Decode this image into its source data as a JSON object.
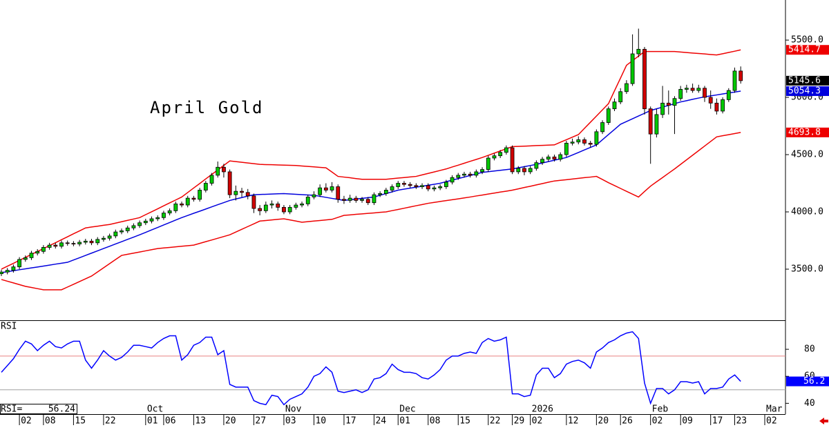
{
  "chart_data": {
    "type": "candlestick",
    "title": "April Gold",
    "categories": [
      null,
      null,
      null,
      "02",
      null,
      null,
      null,
      "08",
      null,
      null,
      null,
      null,
      "15",
      null,
      null,
      null,
      null,
      "22",
      null,
      null,
      null,
      null,
      null,
      null,
      "01",
      null,
      null,
      "06",
      null,
      null,
      null,
      null,
      "13",
      null,
      null,
      null,
      null,
      "20",
      null,
      null,
      null,
      null,
      "27",
      null,
      null,
      null,
      null,
      "03",
      null,
      null,
      null,
      null,
      "10",
      null,
      null,
      null,
      null,
      "17",
      null,
      null,
      null,
      null,
      "24",
      null,
      null,
      null,
      "01",
      null,
      null,
      null,
      null,
      "08",
      null,
      null,
      null,
      null,
      "15",
      null,
      null,
      null,
      null,
      "22",
      null,
      null,
      null,
      "29",
      null,
      null,
      "02",
      null,
      null,
      null,
      null,
      null,
      "12",
      null,
      null,
      null,
      null,
      "20",
      null,
      null,
      null,
      "26",
      null,
      null,
      null,
      null,
      "02",
      null,
      null,
      null,
      null,
      "09",
      null,
      null,
      null,
      null,
      "17",
      null,
      null,
      null,
      "23",
      null,
      null,
      null,
      null,
      "02"
    ],
    "months": [
      null,
      null,
      null,
      null,
      null,
      null,
      null,
      null,
      null,
      null,
      null,
      null,
      null,
      null,
      null,
      null,
      null,
      null,
      null,
      null,
      null,
      null,
      null,
      null,
      "Oct",
      null,
      null,
      null,
      null,
      null,
      null,
      null,
      null,
      null,
      null,
      null,
      null,
      null,
      null,
      null,
      null,
      null,
      null,
      null,
      null,
      null,
      null,
      "Nov",
      null,
      null,
      null,
      null,
      null,
      null,
      null,
      null,
      null,
      null,
      null,
      null,
      null,
      null,
      null,
      null,
      null,
      null,
      "Dec",
      null,
      null,
      null,
      null,
      null,
      null,
      null,
      null,
      null,
      null,
      null,
      null,
      null,
      null,
      null,
      null,
      null,
      null,
      null,
      null,
      null,
      "2026",
      null,
      null,
      null,
      null,
      null,
      null,
      null,
      null,
      null,
      null,
      null,
      null,
      null,
      null,
      null,
      null,
      null,
      null,
      null,
      "Feb",
      null,
      null,
      null,
      null,
      null,
      null,
      null,
      null,
      null,
      null,
      null,
      null,
      null,
      null,
      null,
      null,
      null,
      null,
      "Mar"
    ],
    "open": [
      3460,
      3475,
      3490,
      3520,
      3585,
      3600,
      3640,
      3655,
      3690,
      3710,
      3700,
      3730,
      3725,
      3720,
      3735,
      3745,
      3730,
      3760,
      3770,
      3790,
      3825,
      3835,
      3860,
      3880,
      3905,
      3920,
      3940,
      3950,
      3990,
      4010,
      4070,
      4060,
      4120,
      4110,
      4190,
      4250,
      4320,
      4390,
      4350,
      4150,
      4180,
      4170,
      4140,
      4030,
      4010,
      4060,
      4070,
      4040,
      4000,
      4040,
      4060,
      4070,
      4130,
      4150,
      4210,
      4190,
      4220,
      4110,
      4100,
      4120,
      4100,
      4110,
      4080,
      4150,
      4160,
      4190,
      4220,
      4250,
      4240,
      4230,
      4220,
      4230,
      4200,
      4210,
      4220,
      4260,
      4300,
      4320,
      4330,
      4320,
      4350,
      4370,
      4470,
      4490,
      4520,
      4560,
      4350,
      4380,
      4350,
      4380,
      4430,
      4460,
      4480,
      4460,
      4500,
      4600,
      4610,
      4630,
      4600,
      4590,
      4700,
      4780,
      4900,
      4960,
      5050,
      5120,
      5380,
      5420,
      4900,
      4680,
      4850,
      4950,
      4930,
      4990,
      5070,
      5080,
      5060,
      5080,
      5000,
      4950,
      4880,
      4980,
      5060,
      5230,
      null,
      null,
      null,
      null
    ],
    "high": [
      3495,
      3510,
      3540,
      3605,
      3620,
      3660,
      3675,
      3710,
      3730,
      3730,
      3750,
      3750,
      3745,
      3755,
      3765,
      3765,
      3780,
      3790,
      3810,
      3845,
      3855,
      3880,
      3900,
      3925,
      3940,
      3960,
      3970,
      4010,
      4030,
      4090,
      4090,
      4140,
      4140,
      4210,
      4270,
      4340,
      4440,
      4420,
      4370,
      4230,
      4210,
      4200,
      4160,
      4060,
      4090,
      4100,
      4090,
      4060,
      4060,
      4080,
      4090,
      4150,
      4180,
      4240,
      4250,
      4260,
      4240,
      4140,
      4150,
      4140,
      4130,
      4130,
      4170,
      4180,
      4210,
      4240,
      4270,
      4270,
      4260,
      4250,
      4250,
      4250,
      4230,
      4240,
      4280,
      4320,
      4340,
      4350,
      4350,
      4370,
      4390,
      4490,
      4510,
      4540,
      4580,
      4580,
      4400,
      4400,
      4400,
      4450,
      4480,
      4500,
      4500,
      4520,
      4620,
      4640,
      4660,
      4650,
      4620,
      4720,
      4800,
      4920,
      4990,
      5080,
      5150,
      5550,
      5600,
      5440,
      4920,
      4900,
      5100,
      5060,
      5010,
      5100,
      5110,
      5120,
      5110,
      5100,
      5060,
      4990,
      5000,
      5080,
      5260,
      5270,
      null,
      null,
      null,
      null
    ],
    "low": [
      3440,
      3455,
      3470,
      3500,
      3565,
      3580,
      3620,
      3635,
      3670,
      3680,
      3680,
      3705,
      3700,
      3700,
      3715,
      3710,
      3710,
      3740,
      3750,
      3770,
      3805,
      3815,
      3840,
      3860,
      3885,
      3900,
      3920,
      3930,
      3970,
      3990,
      4040,
      4040,
      4090,
      4090,
      4170,
      4230,
      4300,
      4300,
      4120,
      4100,
      4130,
      4110,
      3990,
      3970,
      3990,
      4030,
      4010,
      3980,
      3980,
      4020,
      4040,
      4050,
      4110,
      4130,
      4170,
      4170,
      4080,
      4070,
      4080,
      4080,
      4080,
      4060,
      4060,
      4130,
      4140,
      4170,
      4200,
      4220,
      4210,
      4200,
      4200,
      4180,
      4180,
      4190,
      4200,
      4240,
      4280,
      4300,
      4300,
      4300,
      4330,
      4350,
      4450,
      4470,
      4500,
      4330,
      4330,
      4320,
      4330,
      4360,
      4410,
      4440,
      4440,
      4440,
      4480,
      4580,
      4590,
      4580,
      4560,
      4570,
      4680,
      4760,
      4880,
      4940,
      5030,
      5100,
      5350,
      4850,
      4420,
      4650,
      4820,
      4850,
      4680,
      4970,
      5040,
      5040,
      5040,
      4960,
      4900,
      4850,
      4860,
      4960,
      5040,
      5120,
      null,
      null,
      null,
      null
    ],
    "close": [
      3475,
      3490,
      3520,
      3585,
      3600,
      3640,
      3655,
      3690,
      3710,
      3700,
      3730,
      3725,
      3720,
      3735,
      3745,
      3730,
      3760,
      3770,
      3790,
      3825,
      3835,
      3860,
      3880,
      3905,
      3920,
      3940,
      3950,
      3990,
      4010,
      4070,
      4060,
      4120,
      4110,
      4190,
      4250,
      4320,
      4390,
      4350,
      4150,
      4180,
      4170,
      4140,
      4030,
      4010,
      4060,
      4070,
      4040,
      4000,
      4040,
      4060,
      4070,
      4130,
      4150,
      4210,
      4190,
      4220,
      4110,
      4100,
      4120,
      4100,
      4110,
      4080,
      4150,
      4160,
      4190,
      4220,
      4250,
      4240,
      4230,
      4220,
      4230,
      4200,
      4210,
      4220,
      4260,
      4300,
      4320,
      4330,
      4320,
      4350,
      4370,
      4470,
      4490,
      4520,
      4560,
      4350,
      4380,
      4350,
      4380,
      4430,
      4460,
      4480,
      4460,
      4500,
      4600,
      4610,
      4630,
      4600,
      4590,
      4700,
      4780,
      4900,
      4960,
      5050,
      5120,
      5380,
      5420,
      4900,
      4680,
      4850,
      4950,
      4930,
      4990,
      5070,
      5080,
      5060,
      5080,
      5000,
      4950,
      4880,
      4980,
      5060,
      5230,
      5145.6,
      null,
      null,
      null,
      null
    ],
    "up_color": "#00c800",
    "down_color": "#d00000",
    "close_color": "#000000",
    "bands": [
      {
        "color": "#ee0000",
        "values": [
          3500,
          3526,
          3551,
          3577,
          3603,
          3629,
          3654,
          3680,
          3706,
          3731,
          3757,
          3783,
          3809,
          3834,
          3860,
          3868,
          3875,
          3883,
          3890,
          3902,
          3914,
          3926,
          3938,
          3950,
          3976,
          4001,
          4027,
          4053,
          4079,
          4104,
          4130,
          4169,
          4209,
          4248,
          4288,
          4327,
          4366,
          4406,
          4445,
          4439,
          4433,
          4427,
          4421,
          4415,
          4413,
          4412,
          4410,
          4408,
          4407,
          4405,
          4401,
          4397,
          4393,
          4389,
          4385,
          4348,
          4310,
          4304,
          4298,
          4291,
          4285,
          4285,
          4285,
          4285,
          4285,
          4290,
          4295,
          4300,
          4305,
          4310,
          4323,
          4336,
          4349,
          4362,
          4375,
          4392,
          4408,
          4425,
          4442,
          4458,
          4475,
          4494,
          4513,
          4532,
          4551,
          4570,
          4572,
          4574,
          4576,
          4579,
          4581,
          4583,
          4585,
          4608,
          4630,
          4653,
          4675,
          4729,
          4783,
          4837,
          4891,
          4945,
          5057,
          5168,
          5280,
          5320,
          5360,
          5400,
          5400,
          5400,
          5400,
          5400,
          5400,
          5396,
          5391,
          5387,
          5383,
          5379,
          5374,
          5370,
          5381,
          5392,
          5403,
          5414.7,
          null,
          null,
          null,
          null
        ]
      },
      {
        "color": "#0000dd",
        "values": [
          3470,
          3478,
          3486,
          3495,
          3503,
          3511,
          3519,
          3527,
          3535,
          3544,
          3552,
          3560,
          3580,
          3600,
          3620,
          3640,
          3660,
          3680,
          3700,
          3720,
          3740,
          3760,
          3780,
          3800,
          3821,
          3843,
          3864,
          3886,
          3907,
          3929,
          3950,
          3969,
          3988,
          4006,
          4025,
          4044,
          4063,
          4081,
          4100,
          4113,
          4125,
          4138,
          4150,
          4152,
          4154,
          4156,
          4158,
          4160,
          4157,
          4154,
          4151,
          4148,
          4145,
          4136,
          4127,
          4118,
          4109,
          4100,
          4106,
          4112,
          4118,
          4124,
          4130,
          4145,
          4160,
          4175,
          4190,
          4199,
          4207,
          4216,
          4224,
          4233,
          4241,
          4250,
          4264,
          4277,
          4291,
          4304,
          4318,
          4331,
          4345,
          4351,
          4357,
          4363,
          4369,
          4375,
          4385,
          4395,
          4405,
          4415,
          4427,
          4439,
          4451,
          4463,
          4475,
          4497,
          4519,
          4541,
          4563,
          4585,
          4630,
          4675,
          4720,
          4765,
          4789,
          4813,
          4837,
          4861,
          4885,
          4900,
          4915,
          4930,
          4945,
          4960,
          4971,
          4983,
          4994,
          5005,
          5013,
          5021,
          5030,
          5038,
          5046,
          5054.3,
          null,
          null,
          null,
          null
        ]
      },
      {
        "color": "#ee0000",
        "values": [
          3410,
          3395,
          3380,
          3365,
          3350,
          3340,
          3330,
          3320,
          3320,
          3320,
          3320,
          3344,
          3368,
          3392,
          3416,
          3440,
          3476,
          3512,
          3548,
          3584,
          3620,
          3630,
          3640,
          3650,
          3660,
          3670,
          3680,
          3685,
          3690,
          3695,
          3700,
          3705,
          3710,
          3725,
          3740,
          3755,
          3770,
          3785,
          3800,
          3824,
          3848,
          3872,
          3896,
          3920,
          3925,
          3930,
          3935,
          3940,
          3930,
          3920,
          3910,
          3915,
          3920,
          3925,
          3930,
          3935,
          3952,
          3970,
          3974,
          3979,
          3983,
          3987,
          3991,
          3996,
          4000,
          4011,
          4021,
          4032,
          4043,
          4054,
          4064,
          4075,
          4083,
          4091,
          4099,
          4106,
          4114,
          4122,
          4130,
          4139,
          4147,
          4156,
          4164,
          4173,
          4181,
          4190,
          4201,
          4213,
          4224,
          4236,
          4247,
          4259,
          4270,
          4276,
          4281,
          4287,
          4293,
          4299,
          4304,
          4310,
          4283,
          4255,
          4230,
          4205,
          4180,
          4155,
          4130,
          4178,
          4225,
          4263,
          4300,
          4338,
          4375,
          4415,
          4455,
          4495,
          4535,
          4575,
          4615,
          4655,
          4665,
          4674,
          4684,
          4693.8,
          null,
          null,
          null,
          null
        ]
      }
    ],
    "ylim": [
      3060,
      5850
    ],
    "yticks": [
      {
        "value": 5500,
        "label": "5500.0"
      },
      {
        "value": 5000,
        "label": "5000.0"
      },
      {
        "value": 4500,
        "label": "4500.0"
      },
      {
        "value": 4000,
        "label": "4000.0"
      },
      {
        "value": 3500,
        "label": "3500.0"
      }
    ],
    "rsi": {
      "label": "RSI",
      "readout_label": "RSI=",
      "color": "#0000ff",
      "values": [
        63,
        68,
        73,
        80,
        86,
        84,
        79,
        83,
        86,
        82,
        81,
        84,
        86,
        86,
        72,
        66,
        72,
        79,
        75,
        72,
        74,
        78,
        83,
        83,
        82,
        81,
        85,
        88,
        90,
        90,
        72,
        76,
        83,
        85,
        89,
        89,
        76,
        79,
        54,
        52,
        52,
        52,
        42,
        40,
        39,
        46,
        45,
        39,
        43,
        45,
        47,
        52,
        60,
        62,
        67,
        63,
        49,
        48,
        49,
        50,
        48,
        50,
        58,
        59,
        62,
        69,
        65,
        63,
        63,
        62,
        59,
        58,
        61,
        65,
        72,
        75,
        75,
        77,
        78,
        77,
        85,
        88,
        86,
        87,
        89,
        47,
        47,
        45,
        46,
        61,
        66,
        66,
        59,
        62,
        69,
        71,
        72,
        70,
        66,
        78,
        81,
        85,
        87,
        90,
        92,
        93,
        88,
        55,
        40,
        51,
        51,
        47,
        50,
        56,
        56,
        55,
        56,
        47,
        51,
        51,
        52,
        58,
        61,
        56.24,
        null,
        null,
        null,
        null
      ],
      "value_label": "56.2",
      "ylim": [
        32,
        101
      ],
      "yticks": [
        80,
        60,
        40
      ],
      "levels": [
        {
          "value": 75,
          "color": "#e88080"
        },
        {
          "value": 50,
          "color": "#a0a0a0"
        }
      ]
    }
  }
}
